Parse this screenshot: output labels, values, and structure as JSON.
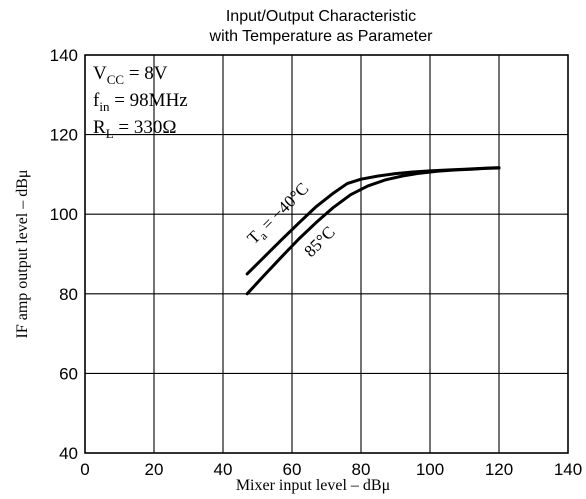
{
  "chart_data": {
    "type": "line",
    "title_line1": "Input/Output Characteristic",
    "title_line2": "with Temperature as Parameter",
    "xlabel": "Mixer input level  –  dBμ",
    "ylabel": "IF amp output level  –  dBμ",
    "xlim": [
      0,
      140
    ],
    "ylim": [
      40,
      140
    ],
    "xticks": [
      0,
      20,
      40,
      60,
      80,
      100,
      120,
      140
    ],
    "yticks": [
      40,
      60,
      80,
      100,
      120,
      140
    ],
    "grid": true,
    "conditions": {
      "vcc": {
        "main": "V",
        "sub": "CC",
        "rest": " = 8V"
      },
      "fin": {
        "main": "f",
        "sub": "in",
        "rest": " = 98MHz"
      },
      "rl": {
        "main": "R",
        "sub": "L",
        "rest": " = 330Ω"
      }
    },
    "series": [
      {
        "name_main": "T",
        "name_sub": "a",
        "name_rest": " = −40°C",
        "x": [
          47,
          52,
          57,
          62,
          67,
          72,
          76,
          80,
          85,
          90,
          95,
          100,
          105,
          110,
          115,
          120
        ],
        "y": [
          85,
          89.3,
          93.6,
          97.8,
          101.9,
          105.3,
          107.7,
          108.8,
          109.6,
          110.2,
          110.6,
          110.9,
          111.1,
          111.3,
          111.5,
          111.7
        ]
      },
      {
        "name_main": "",
        "name_sub": "",
        "name_rest": "85°C",
        "x": [
          47,
          52,
          57,
          62,
          67,
          72,
          77,
          82,
          87,
          92,
          97,
          102,
          107,
          112,
          116,
          120
        ],
        "y": [
          80,
          84.7,
          89.3,
          93.8,
          97.9,
          101.7,
          104.9,
          107.1,
          108.6,
          109.6,
          110.3,
          110.8,
          111.1,
          111.3,
          111.5,
          111.6
        ]
      }
    ]
  }
}
